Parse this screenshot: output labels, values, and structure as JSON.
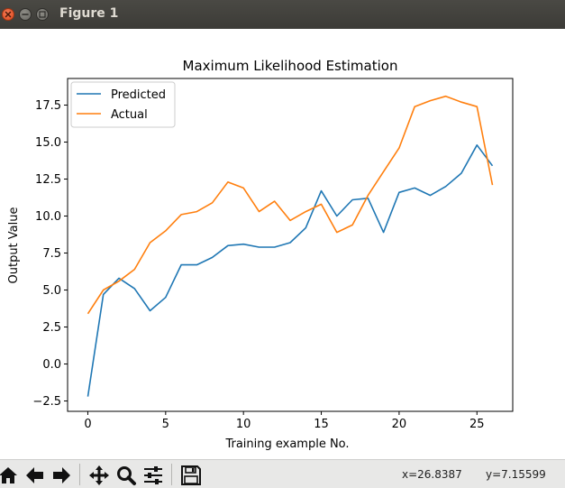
{
  "window": {
    "title": "Figure 1"
  },
  "toolbar": {
    "buttons": [
      {
        "name": "home-button",
        "icon": "home-icon"
      },
      {
        "name": "back-button",
        "icon": "arrow-left-icon"
      },
      {
        "name": "forward-button",
        "icon": "arrow-right-icon"
      },
      {
        "name": "pan-button",
        "icon": "move-icon"
      },
      {
        "name": "zoom-button",
        "icon": "magnifier-icon"
      },
      {
        "name": "configure-subplots-button",
        "icon": "sliders-icon"
      },
      {
        "name": "save-button",
        "icon": "floppy-disk-icon"
      }
    ],
    "coords_x": "x=26.8387",
    "coords_y": "y=7.15599"
  },
  "chart_data": {
    "type": "line",
    "title": "Maximum Likelihood Estimation",
    "xlabel": "Training example No.",
    "ylabel": "Output Value",
    "xlim": [
      -1.3,
      27.3
    ],
    "ylim": [
      -3.2,
      19.3
    ],
    "xticks": [
      0,
      5,
      10,
      15,
      20,
      25
    ],
    "yticks": [
      -2.5,
      0.0,
      2.5,
      5.0,
      7.5,
      10.0,
      12.5,
      15.0,
      17.5
    ],
    "xtick_labels": [
      "0",
      "5",
      "10",
      "15",
      "20",
      "25"
    ],
    "ytick_labels": [
      "−2.5",
      "0.0",
      "2.5",
      "5.0",
      "7.5",
      "10.0",
      "12.5",
      "15.0",
      "17.5"
    ],
    "grid": false,
    "legend": "top-left",
    "x": [
      0,
      1,
      2,
      3,
      4,
      5,
      6,
      7,
      8,
      9,
      10,
      11,
      12,
      13,
      14,
      15,
      16,
      17,
      18,
      19,
      20,
      21,
      22,
      23,
      24,
      25,
      26
    ],
    "series": [
      {
        "name": "Predicted",
        "color": "#1f77b4",
        "values": [
          -2.2,
          4.7,
          5.8,
          5.1,
          3.6,
          4.5,
          6.7,
          6.7,
          7.2,
          8.0,
          8.1,
          7.9,
          7.9,
          8.2,
          9.2,
          11.7,
          10.0,
          11.1,
          11.2,
          8.9,
          11.6,
          11.9,
          11.4,
          12.0,
          12.9,
          14.8,
          13.4
        ]
      },
      {
        "name": "Actual",
        "color": "#ff7f0e",
        "values": [
          3.4,
          5.0,
          5.6,
          6.4,
          8.2,
          9.0,
          10.1,
          10.3,
          10.9,
          12.3,
          11.9,
          10.3,
          11.0,
          9.7,
          10.3,
          10.8,
          8.9,
          9.4,
          11.4,
          13.0,
          14.6,
          17.4,
          17.8,
          18.1,
          17.7,
          17.4,
          12.1
        ]
      }
    ]
  }
}
